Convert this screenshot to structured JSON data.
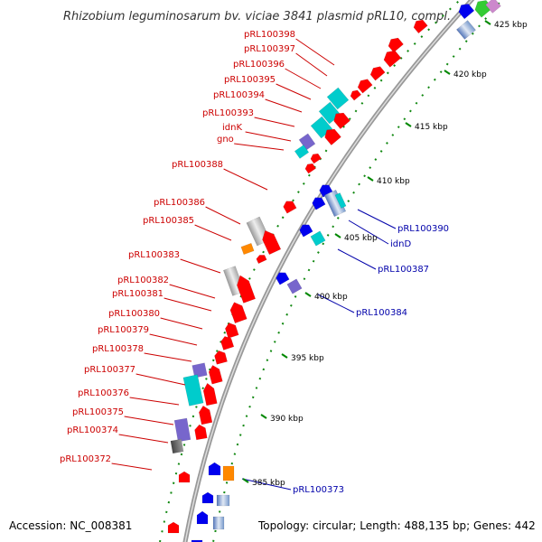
{
  "title": "Rhizobium leguminosarum bv. viciae 3841 plasmid pRL10, compl...",
  "footer": {
    "accession": "Accession: NC_008381",
    "topology": "Topology: circular; Length: 488,135 bp; Genes: 442"
  },
  "ticks": [
    "425 kbp",
    "420 kbp",
    "415 kbp",
    "410 kbp",
    "405 kbp",
    "400 kbp",
    "395 kbp",
    "390 kbp",
    "385 kbp"
  ],
  "left_labels": [
    "pRL100398",
    "pRL100397",
    "pRL100396",
    "pRL100395",
    "pRL100394",
    "pRL100393",
    "idnK",
    "gno",
    "pRL100388",
    "pRL100386",
    "pRL100385",
    "pRL100383",
    "pRL100382",
    "pRL100381",
    "pRL100380",
    "pRL100379",
    "pRL100378",
    "pRL100377",
    "pRL100376",
    "pRL100375",
    "pRL100374",
    "pRL100372"
  ],
  "right_labels": [
    "pRL100390",
    "idnD",
    "pRL100387",
    "pRL100384",
    "pRL100373"
  ],
  "colors": {
    "forward_gene": "#ff0000",
    "reverse_gene": "#0000ee",
    "cyan_feature": "#00cccc",
    "purple_feature": "#7766cc",
    "orange_feature": "#ff8800",
    "gray_feature": "#c0c0c0",
    "left_label": "#cc0000",
    "right_label": "#0000aa",
    "tick_mark": "#008800",
    "backbone": "#888888"
  }
}
